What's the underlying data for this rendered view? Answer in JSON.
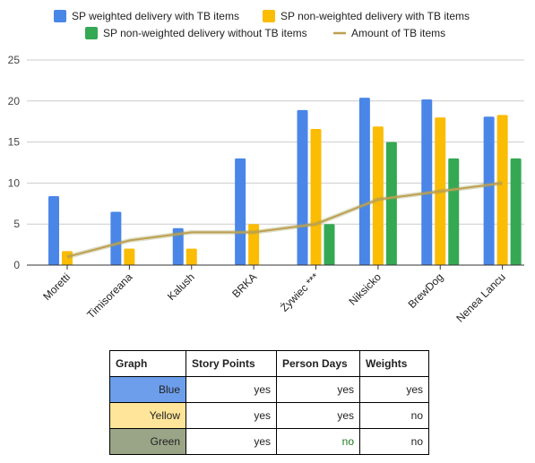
{
  "chart_data": {
    "type": "bar",
    "categories": [
      "Moretti",
      "Timisoreana",
      "Kalush",
      "BRKA",
      "Żywiec ***",
      "Niksicko",
      "BrewDog",
      "Nenea Lancu"
    ],
    "series": [
      {
        "name": "SP weighted delivery with TB items",
        "type": "bar",
        "color": "#4a86e8",
        "values": [
          8.4,
          6.5,
          4.5,
          13,
          18.9,
          20.4,
          20.2,
          18.1
        ]
      },
      {
        "name": "SP non-weighted delivery with TB items",
        "type": "bar",
        "color": "#fbbc04",
        "values": [
          1.7,
          2,
          2,
          5,
          16.6,
          16.9,
          18,
          18.3
        ]
      },
      {
        "name": "SP non-weighted delivery without TB items",
        "type": "bar",
        "color": "#34a853",
        "values": [
          null,
          null,
          null,
          null,
          5,
          15,
          13,
          13
        ]
      },
      {
        "name": "Amount of TB items",
        "type": "line",
        "color": "#bf9f50",
        "values": [
          1,
          3,
          4,
          4,
          5,
          8,
          9,
          10
        ]
      }
    ],
    "title": "",
    "xlabel": "",
    "ylabel": "",
    "ylim": [
      0,
      25
    ],
    "yticks": [
      0,
      5,
      10,
      15,
      20,
      25
    ],
    "grid": true,
    "legend": "top"
  },
  "table": {
    "headers": [
      "Graph",
      "Story Points",
      "Person Days",
      "Weights"
    ],
    "rows": [
      {
        "label": "Blue",
        "color": "#6d9eeb",
        "values": [
          "yes",
          "yes",
          "yes"
        ]
      },
      {
        "label": "Yellow",
        "color": "#ffe599",
        "values": [
          "yes",
          "yes",
          "no"
        ]
      },
      {
        "label": "Green",
        "color": "#9aa587",
        "values": [
          "yes",
          "no",
          "no"
        ]
      }
    ]
  }
}
